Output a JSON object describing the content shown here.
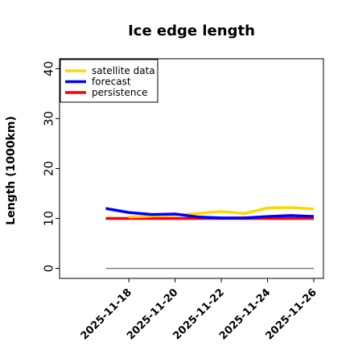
{
  "chart_data": {
    "type": "line",
    "title": "Ice edge length",
    "xlabel": "",
    "ylabel": "Length (1000km)",
    "ylim": [
      -2,
      42
    ],
    "yticks": [
      0,
      10,
      20,
      30,
      40
    ],
    "xlim": [
      "2025-11-15",
      "2025-11-26"
    ],
    "xticks": [
      {
        "date": "2025-11-18",
        "label": "2025-11-18",
        "color": "#2e8b2e"
      },
      {
        "date": "2025-11-20",
        "label": "2025-11-20",
        "color": "#000000"
      },
      {
        "date": "2025-11-22",
        "label": "2025-11-22",
        "color": "#000000"
      },
      {
        "date": "2025-11-24",
        "label": "2025-11-24",
        "color": "#000000"
      },
      {
        "date": "2025-11-26",
        "label": "2025-11-26",
        "color": "#000000"
      }
    ],
    "x": [
      "2025-11-17",
      "2025-11-18",
      "2025-11-19",
      "2025-11-20",
      "2025-11-21",
      "2025-11-22",
      "2025-11-23",
      "2025-11-24",
      "2025-11-25",
      "2025-11-26"
    ],
    "series": [
      {
        "name": "satellite data",
        "color": "#ffd700",
        "values": [
          null,
          10.3,
          10.5,
          10.7,
          11.0,
          11.4,
          11.0,
          12.1,
          12.2,
          11.9
        ]
      },
      {
        "name": "forecast",
        "color": "#0000ff",
        "values": [
          12.0,
          11.2,
          10.8,
          10.9,
          10.3,
          10.1,
          10.1,
          10.4,
          10.6,
          10.4
        ]
      },
      {
        "name": "persistence",
        "color": "#ff0000",
        "values": [
          10.0,
          10.0,
          10.0,
          10.0,
          10.0,
          10.0,
          10.0,
          10.0,
          10.0,
          10.0
        ]
      }
    ],
    "reference_line": {
      "y": 0,
      "color": "#808080"
    },
    "grid": false,
    "legend_position": "top-left"
  }
}
